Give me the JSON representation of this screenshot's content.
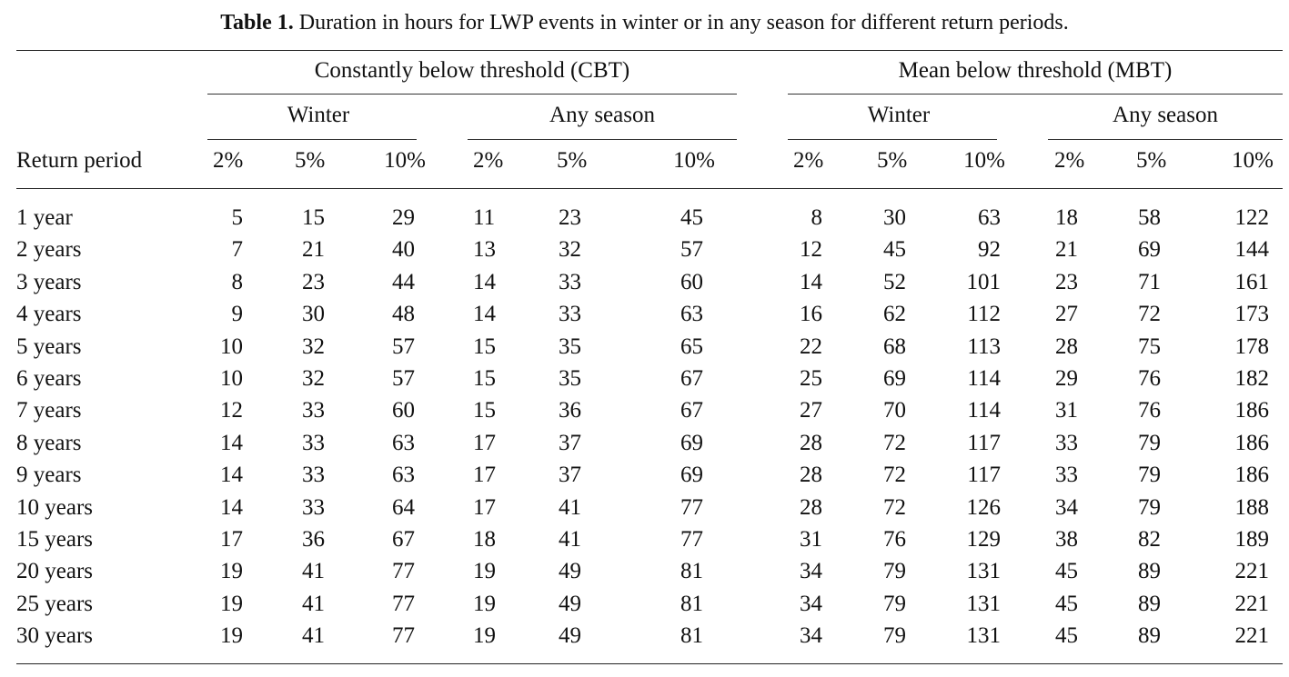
{
  "caption": {
    "label": "Table 1.",
    "text": " Duration in hours for LWP events in winter or in any season for different return periods."
  },
  "header": {
    "row_label": "Return period",
    "groups": [
      "Constantly below threshold (CBT)",
      "Mean below threshold (MBT)"
    ],
    "subgroups": [
      "Winter",
      "Any season",
      "Winter",
      "Any season"
    ],
    "thresholds": [
      "2%",
      "5%",
      "10%",
      "2%",
      "5%",
      "10%",
      "2%",
      "5%",
      "10%",
      "2%",
      "5%",
      "10%"
    ]
  },
  "rows": [
    {
      "period": "1 year",
      "values": [
        "5",
        "15",
        "29",
        "11",
        "23",
        "45",
        "8",
        "30",
        "63",
        "18",
        "58",
        "122"
      ]
    },
    {
      "period": "2 years",
      "values": [
        "7",
        "21",
        "40",
        "13",
        "32",
        "57",
        "12",
        "45",
        "92",
        "21",
        "69",
        "144"
      ]
    },
    {
      "period": "3 years",
      "values": [
        "8",
        "23",
        "44",
        "14",
        "33",
        "60",
        "14",
        "52",
        "101",
        "23",
        "71",
        "161"
      ]
    },
    {
      "period": "4 years",
      "values": [
        "9",
        "30",
        "48",
        "14",
        "33",
        "63",
        "16",
        "62",
        "112",
        "27",
        "72",
        "173"
      ]
    },
    {
      "period": "5 years",
      "values": [
        "10",
        "32",
        "57",
        "15",
        "35",
        "65",
        "22",
        "68",
        "113",
        "28",
        "75",
        "178"
      ]
    },
    {
      "period": "6 years",
      "values": [
        "10",
        "32",
        "57",
        "15",
        "35",
        "67",
        "25",
        "69",
        "114",
        "29",
        "76",
        "182"
      ]
    },
    {
      "period": "7 years",
      "values": [
        "12",
        "33",
        "60",
        "15",
        "36",
        "67",
        "27",
        "70",
        "114",
        "31",
        "76",
        "186"
      ]
    },
    {
      "period": "8 years",
      "values": [
        "14",
        "33",
        "63",
        "17",
        "37",
        "69",
        "28",
        "72",
        "117",
        "33",
        "79",
        "186"
      ]
    },
    {
      "period": "9 years",
      "values": [
        "14",
        "33",
        "63",
        "17",
        "37",
        "69",
        "28",
        "72",
        "117",
        "33",
        "79",
        "186"
      ]
    },
    {
      "period": "10 years",
      "values": [
        "14",
        "33",
        "64",
        "17",
        "41",
        "77",
        "28",
        "72",
        "126",
        "34",
        "79",
        "188"
      ]
    },
    {
      "period": "15 years",
      "values": [
        "17",
        "36",
        "67",
        "18",
        "41",
        "77",
        "31",
        "76",
        "129",
        "38",
        "82",
        "189"
      ]
    },
    {
      "period": "20 years",
      "values": [
        "19",
        "41",
        "77",
        "19",
        "49",
        "81",
        "34",
        "79",
        "131",
        "45",
        "89",
        "221"
      ]
    },
    {
      "period": "25 years",
      "values": [
        "19",
        "41",
        "77",
        "19",
        "49",
        "81",
        "34",
        "79",
        "131",
        "45",
        "89",
        "221"
      ]
    },
    {
      "period": "30 years",
      "values": [
        "19",
        "41",
        "77",
        "19",
        "49",
        "81",
        "34",
        "79",
        "131",
        "45",
        "89",
        "221"
      ]
    }
  ]
}
